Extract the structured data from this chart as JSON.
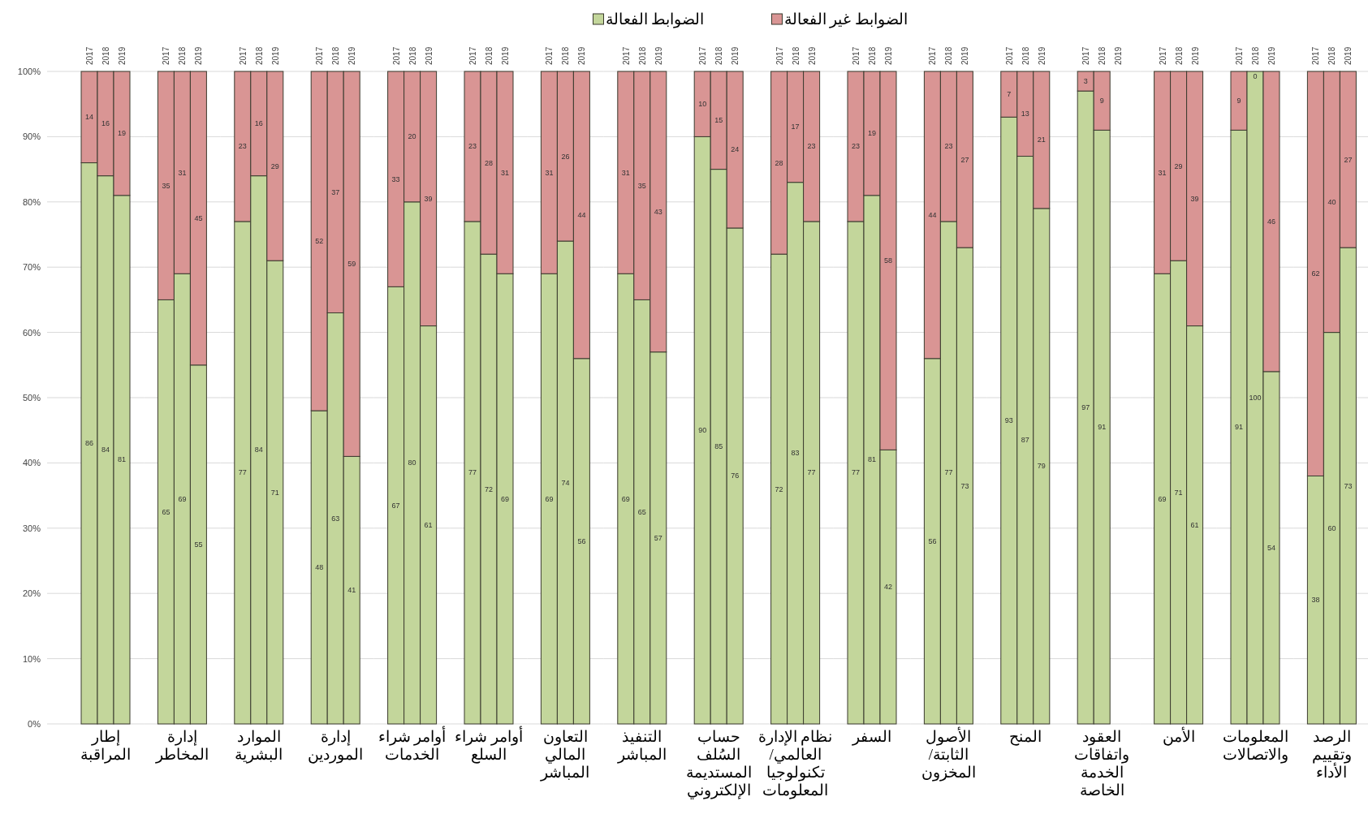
{
  "chart_data": [
    {
      "type": "bar",
      "stacked": true,
      "categories": [
        "2017",
        "2018",
        "2019"
      ],
      "xlabel": "إطار\nالمراقبة",
      "series": [
        {
          "name": "الضوابط الفعالة",
          "color": "#c3d69b",
          "values": [
            86,
            84,
            81
          ]
        },
        {
          "name": "الضوابط غير الفعالة",
          "color": "#d99594",
          "values": [
            14,
            16,
            19
          ]
        }
      ],
      "ylim": [
        0,
        100
      ],
      "yticks": [
        {
          "value": 0,
          "label": "0%"
        },
        {
          "value": 10,
          "label": "10%"
        },
        {
          "value": 20,
          "label": "20%"
        },
        {
          "value": 30,
          "label": "30%"
        },
        {
          "value": 40,
          "label": "40%"
        },
        {
          "value": 50,
          "label": "50%"
        },
        {
          "value": 60,
          "label": "60%"
        },
        {
          "value": 70,
          "label": "70%"
        },
        {
          "value": 80,
          "label": "80%"
        },
        {
          "value": 90,
          "label": "90%"
        },
        {
          "value": 100,
          "label": "100%"
        }
      ],
      "grid": "y",
      "data_labels": true,
      "legend": "top"
    },
    {
      "type": "bar",
      "stacked": true,
      "categories": [
        "2017",
        "2018",
        "2019"
      ],
      "xlabel": "إدارة\nالمخاطر",
      "series": [
        {
          "color": "#c3d69b",
          "values": [
            65,
            69,
            55
          ]
        },
        {
          "color": "#d99594",
          "values": [
            35,
            31,
            45
          ]
        }
      ],
      "ylim": [
        0,
        100
      ],
      "yticks": [
        0,
        10,
        20,
        30,
        40,
        50,
        60,
        70,
        80,
        90,
        100
      ],
      "grid": "y",
      "data_labels": true,
      "tick_labels": "x"
    },
    {
      "type": "bar",
      "stacked": true,
      "categories": [
        "2017",
        "2018",
        "2019"
      ],
      "xlabel": "الموارد\nالبشرية",
      "series": [
        {
          "color": "#c3d69b",
          "values": [
            77,
            84,
            71
          ]
        },
        {
          "color": "#d99594",
          "values": [
            23,
            16,
            29
          ]
        }
      ],
      "ylim": [
        0,
        100
      ],
      "yticks": [
        0,
        10,
        20,
        30,
        40,
        50,
        60,
        70,
        80,
        90,
        100
      ],
      "grid": "y",
      "data_labels": true,
      "tick_labels": "x"
    },
    {
      "type": "bar",
      "stacked": true,
      "categories": [
        "2017",
        "2018",
        "2019"
      ],
      "xlabel": "إدارة\nالموردين",
      "series": [
        {
          "color": "#c3d69b",
          "values": [
            48,
            63,
            41
          ]
        },
        {
          "color": "#d99594",
          "values": [
            52,
            37,
            59
          ]
        }
      ],
      "ylim": [
        0,
        100
      ],
      "yticks": [
        0,
        10,
        20,
        30,
        40,
        50,
        60,
        70,
        80,
        90,
        100
      ],
      "grid": "y",
      "data_labels": true,
      "tick_labels": "x"
    },
    {
      "type": "bar",
      "stacked": true,
      "categories": [
        "2017",
        "2018",
        "2019"
      ],
      "xlabel": "أوامر شراء\nالخدمات",
      "series": [
        {
          "color": "#c3d69b",
          "values": [
            67,
            80,
            61
          ]
        },
        {
          "color": "#d99594",
          "values": [
            33,
            20,
            39
          ]
        }
      ],
      "ylim": [
        0,
        100
      ],
      "yticks": [
        0,
        10,
        20,
        30,
        40,
        50,
        60,
        70,
        80,
        90,
        100
      ],
      "grid": "y",
      "data_labels": true,
      "tick_labels": "x"
    },
    {
      "type": "bar",
      "stacked": true,
      "categories": [
        "2017",
        "2018",
        "2019"
      ],
      "xlabel": "أوامر شراء\nالسلع",
      "series": [
        {
          "color": "#c3d69b",
          "values": [
            77,
            72,
            69
          ]
        },
        {
          "color": "#d99594",
          "values": [
            23,
            28,
            31
          ]
        }
      ],
      "ylim": [
        0,
        100
      ],
      "yticks": [
        0,
        10,
        20,
        30,
        40,
        50,
        60,
        70,
        80,
        90,
        100
      ],
      "grid": "y",
      "data_labels": true,
      "tick_labels": "x"
    },
    {
      "type": "bar",
      "stacked": true,
      "categories": [
        "2017",
        "2018",
        "2019"
      ],
      "xlabel": "التعاون\nالمالي\nالمباشر",
      "series": [
        {
          "color": "#c3d69b",
          "values": [
            69,
            74,
            56
          ]
        },
        {
          "color": "#d99594",
          "values": [
            31,
            26,
            44
          ]
        }
      ],
      "ylim": [
        0,
        100
      ],
      "yticks": [
        0,
        10,
        20,
        30,
        40,
        50,
        60,
        70,
        80,
        90,
        100
      ],
      "grid": "y",
      "data_labels": true,
      "tick_labels": "x"
    },
    {
      "type": "bar",
      "stacked": true,
      "categories": [
        "2017",
        "2018",
        "2019"
      ],
      "xlabel": "التنفيذ\nالمباشر",
      "series": [
        {
          "color": "#c3d69b",
          "values": [
            69,
            65,
            57
          ]
        },
        {
          "color": "#d99594",
          "values": [
            31,
            35,
            43
          ]
        }
      ],
      "ylim": [
        0,
        100
      ],
      "yticks": [
        0,
        10,
        20,
        30,
        40,
        50,
        60,
        70,
        80,
        90,
        100
      ],
      "grid": "y",
      "data_labels": true,
      "tick_labels": "x"
    },
    {
      "type": "bar",
      "stacked": true,
      "categories": [
        "2017",
        "2018",
        "2019"
      ],
      "xlabel": "حساب\nالسُلف\nالمستديمة\nالإلكتروني",
      "series": [
        {
          "color": "#c3d69b",
          "values": [
            90,
            85,
            76
          ]
        },
        {
          "color": "#d99594",
          "values": [
            10,
            15,
            24
          ]
        }
      ],
      "ylim": [
        0,
        100
      ],
      "yticks": [
        0,
        10,
        20,
        30,
        40,
        50,
        60,
        70,
        80,
        90,
        100
      ],
      "grid": "y",
      "data_labels": true,
      "tick_labels": "x"
    },
    {
      "type": "bar",
      "stacked": true,
      "categories": [
        "2017",
        "2018",
        "2019"
      ],
      "xlabel": "نظام الإدارة\nالعالمي/\nتكنولوجيا\nالمعلومات",
      "series": [
        {
          "color": "#c3d69b",
          "values": [
            72,
            83,
            77
          ]
        },
        {
          "color": "#d99594",
          "values": [
            28,
            17,
            23
          ]
        }
      ],
      "ylim": [
        0,
        100
      ],
      "yticks": [
        0,
        10,
        20,
        30,
        40,
        50,
        60,
        70,
        80,
        90,
        100
      ],
      "grid": "y",
      "data_labels": true,
      "tick_labels": "x"
    },
    {
      "type": "bar",
      "stacked": true,
      "categories": [
        "2017",
        "2018",
        "2019"
      ],
      "xlabel": "السفر",
      "series": [
        {
          "color": "#c3d69b",
          "values": [
            77,
            81,
            42
          ]
        },
        {
          "color": "#d99594",
          "values": [
            23,
            19,
            58
          ]
        }
      ],
      "ylim": [
        0,
        100
      ],
      "yticks": [
        0,
        10,
        20,
        30,
        40,
        50,
        60,
        70,
        80,
        90,
        100
      ],
      "grid": "y",
      "data_labels": true,
      "tick_labels": "x"
    },
    {
      "type": "bar",
      "stacked": true,
      "categories": [
        "2017",
        "2018",
        "2019"
      ],
      "xlabel": "الأصول\nالثابتة/\nالمخزون",
      "series": [
        {
          "color": "#c3d69b",
          "values": [
            56,
            77,
            73
          ]
        },
        {
          "color": "#d99594",
          "values": [
            44,
            23,
            27
          ]
        }
      ],
      "ylim": [
        0,
        100
      ],
      "yticks": [
        0,
        10,
        20,
        30,
        40,
        50,
        60,
        70,
        80,
        90,
        100
      ],
      "grid": "y",
      "data_labels": true,
      "tick_labels": "x"
    },
    {
      "type": "bar",
      "stacked": true,
      "categories": [
        "2017",
        "2018",
        "2019"
      ],
      "xlabel": "المنح",
      "series": [
        {
          "color": "#c3d69b",
          "values": [
            93,
            87,
            79
          ]
        },
        {
          "color": "#d99594",
          "values": [
            7,
            13,
            21
          ]
        }
      ],
      "ylim": [
        0,
        100
      ],
      "yticks": [
        0,
        10,
        20,
        30,
        40,
        50,
        60,
        70,
        80,
        90,
        100
      ],
      "grid": "y",
      "data_labels": true,
      "tick_labels": "x"
    },
    {
      "type": "bar",
      "stacked": true,
      "categories": [
        "2017",
        "2018",
        "2019"
      ],
      "xlabel": "العقود\nواتفاقات\nالخدمة\nالخاصة",
      "series": [
        {
          "color": "#c3d69b",
          "values": [
            97,
            91,
            null
          ]
        },
        {
          "color": "#d99594",
          "values": [
            3,
            9,
            null
          ]
        }
      ],
      "ylim": [
        0,
        100
      ],
      "yticks": [
        0,
        10,
        20,
        30,
        40,
        50,
        60,
        70,
        80,
        90,
        100
      ],
      "grid": "y",
      "data_labels": true,
      "tick_labels": "x"
    },
    {
      "type": "bar",
      "stacked": true,
      "categories": [
        "2017",
        "2018",
        "2019"
      ],
      "xlabel": "الأمن",
      "series": [
        {
          "color": "#c3d69b",
          "values": [
            69,
            71,
            61
          ]
        },
        {
          "color": "#d99594",
          "values": [
            31,
            29,
            39
          ]
        }
      ],
      "ylim": [
        0,
        100
      ],
      "yticks": [
        0,
        10,
        20,
        30,
        40,
        50,
        60,
        70,
        80,
        90,
        100
      ],
      "grid": "y",
      "data_labels": true,
      "tick_labels": "x"
    },
    {
      "type": "bar",
      "stacked": true,
      "categories": [
        "2017",
        "2018",
        "2019"
      ],
      "xlabel": "المعلومات\nوالاتصالات",
      "series": [
        {
          "color": "#c3d69b",
          "values": [
            91,
            100,
            54
          ]
        },
        {
          "color": "#d99594",
          "values": [
            9,
            0,
            46
          ]
        }
      ],
      "ylim": [
        0,
        100
      ],
      "yticks": [
        0,
        10,
        20,
        30,
        40,
        50,
        60,
        70,
        80,
        90,
        100
      ],
      "grid": "y",
      "data_labels": true,
      "tick_labels": "x"
    },
    {
      "type": "bar",
      "stacked": true,
      "categories": [
        "2017",
        "2018",
        "2019"
      ],
      "xlabel": "الرصد\nوتقييم\nالأداء",
      "series": [
        {
          "color": "#c3d69b",
          "values": [
            38,
            60,
            73
          ]
        },
        {
          "color": "#d99594",
          "values": [
            62,
            40,
            27
          ]
        }
      ],
      "ylim": [
        0,
        100
      ],
      "yticks": [
        0,
        10,
        20,
        30,
        40,
        50,
        60,
        70,
        80,
        90,
        100
      ],
      "grid": "y",
      "data_labels": true,
      "tick_labels": "x"
    }
  ]
}
